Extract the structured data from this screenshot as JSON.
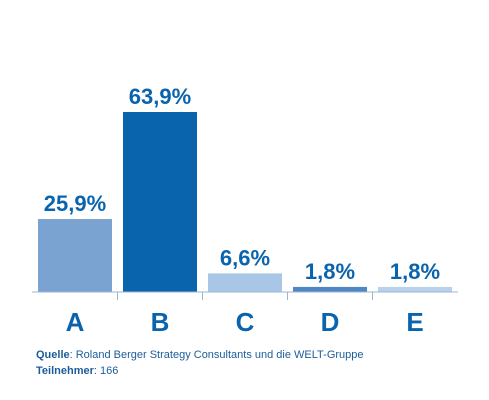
{
  "chart_data": {
    "type": "bar",
    "categories": [
      "A",
      "B",
      "C",
      "D",
      "E"
    ],
    "values": [
      25.9,
      63.9,
      6.6,
      1.8,
      1.8
    ],
    "value_labels": [
      "25,9%",
      "63,9%",
      "6,6%",
      "1,8%",
      "1,8%"
    ],
    "colors": [
      "#7ba3d1",
      "#0a64ad",
      "#a9c6e6",
      "#4f86c4",
      "#b8d2ec"
    ],
    "label_color": "#0a64ad",
    "ylim": [
      0,
      63.9
    ],
    "grid": false,
    "legend": "none"
  },
  "footer": {
    "source_label": "Quelle",
    "source_text": ": Roland Berger Strategy Consultants und die WELT-Gruppe",
    "participants_label": "Teilnehmer",
    "participants_text": ": 166"
  }
}
